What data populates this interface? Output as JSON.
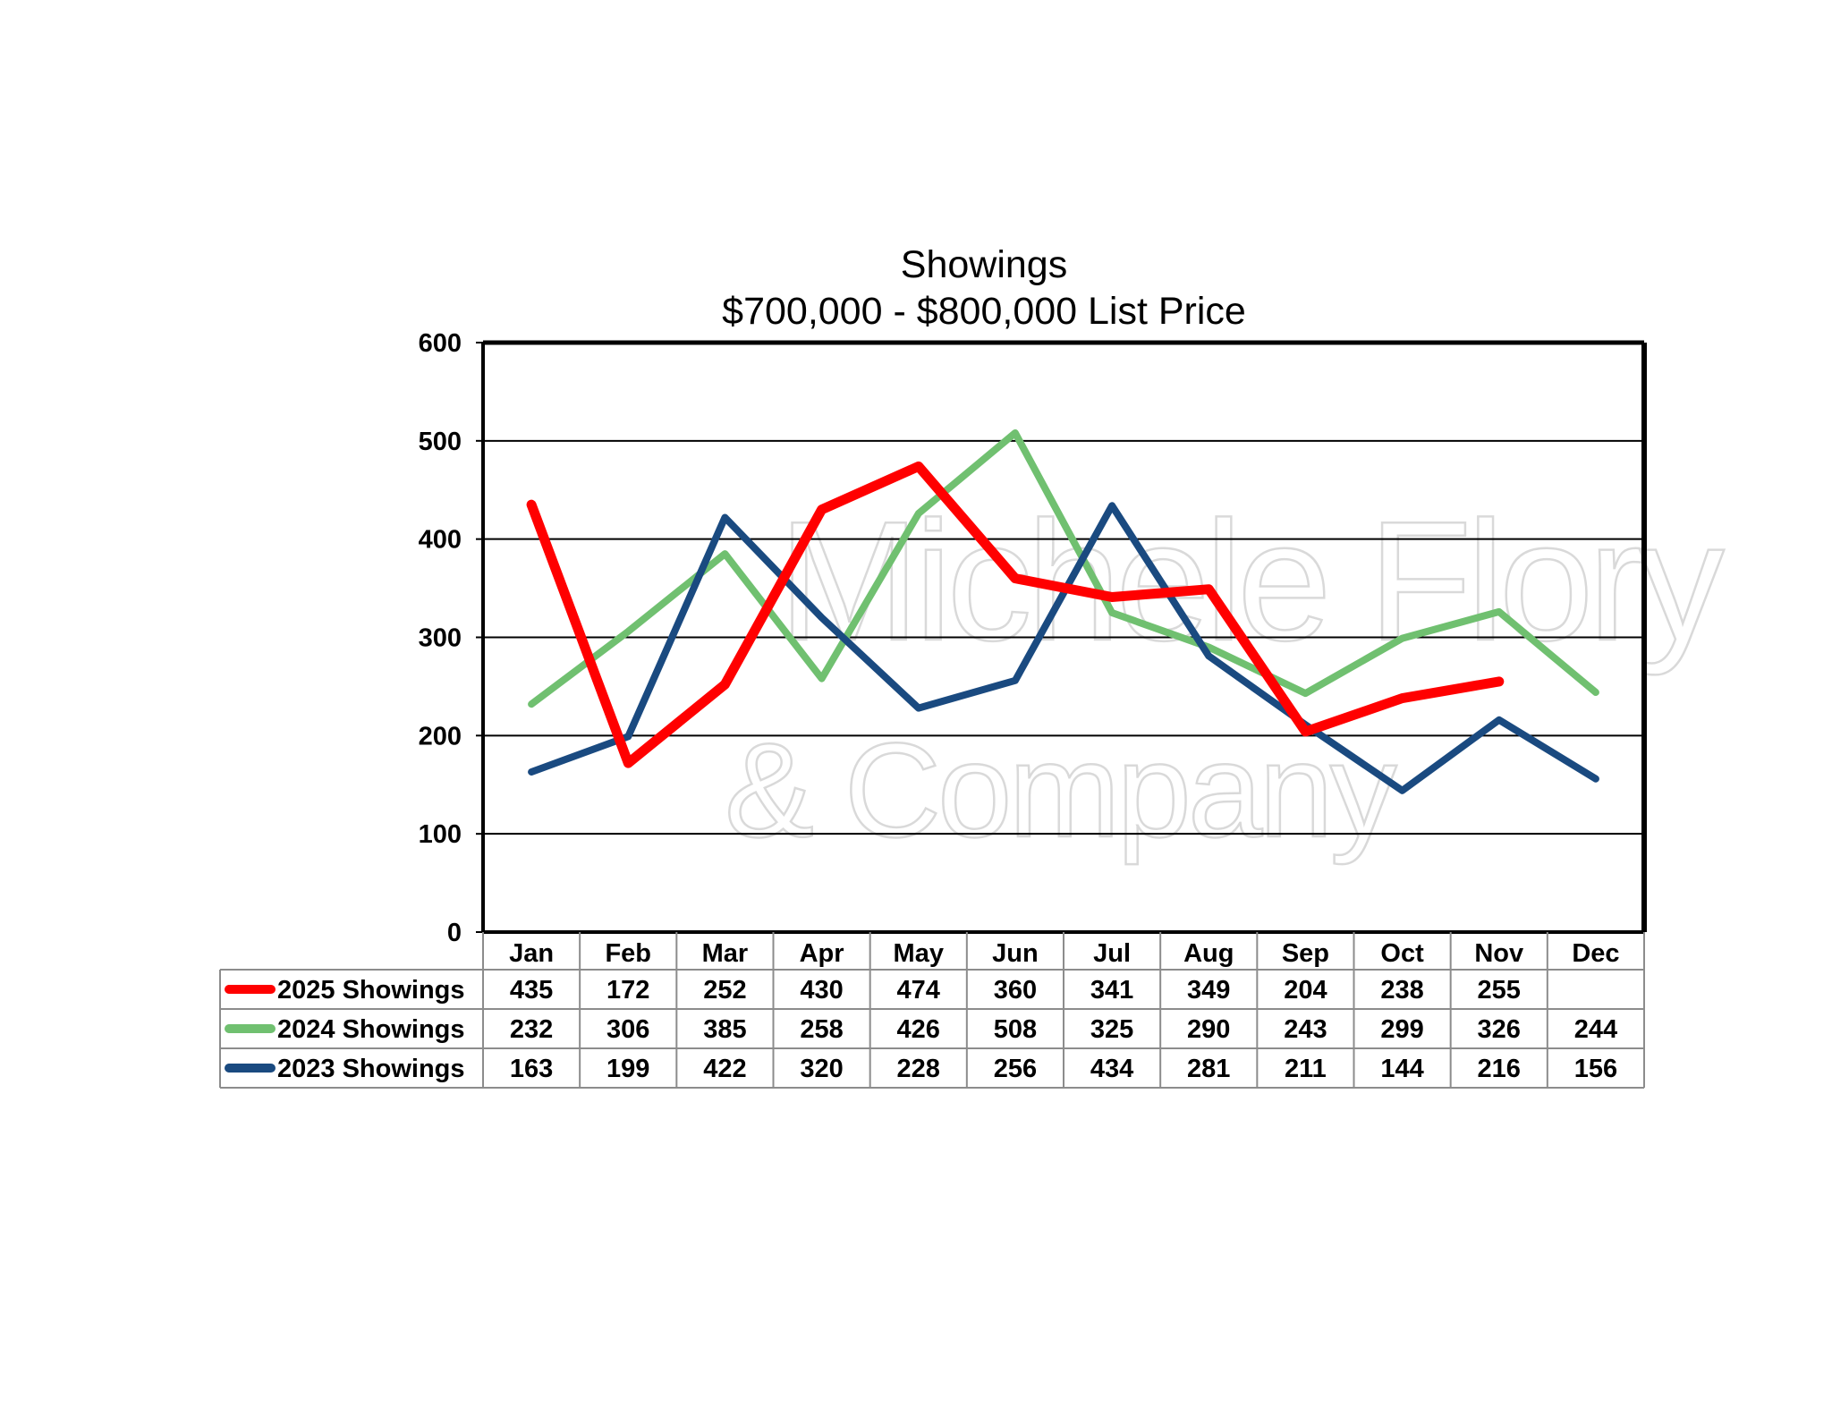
{
  "chart_data": {
    "type": "line",
    "title": "Showings",
    "subtitle": "$700,000 - $800,000 List Price",
    "categories": [
      "Jan",
      "Feb",
      "Mar",
      "Apr",
      "May",
      "Jun",
      "Jul",
      "Aug",
      "Sep",
      "Oct",
      "Nov",
      "Dec"
    ],
    "ylim": [
      0,
      600
    ],
    "yticks": [
      0,
      100,
      200,
      300,
      400,
      500,
      600
    ],
    "grid": true,
    "legend": "data-table-below",
    "series": [
      {
        "name": "2025 Showings",
        "color": "#ff0000",
        "values": [
          435,
          172,
          252,
          430,
          474,
          360,
          341,
          349,
          204,
          238,
          255,
          null
        ]
      },
      {
        "name": "2024 Showings",
        "color": "#70c070",
        "values": [
          232,
          306,
          385,
          258,
          426,
          508,
          325,
          290,
          243,
          299,
          326,
          244
        ]
      },
      {
        "name": "2023 Showings",
        "color": "#1a4a80",
        "values": [
          163,
          199,
          422,
          320,
          228,
          256,
          434,
          281,
          211,
          144,
          216,
          156
        ]
      }
    ]
  },
  "watermark": {
    "line1": "Michele Flory",
    "line2": "& Company"
  }
}
